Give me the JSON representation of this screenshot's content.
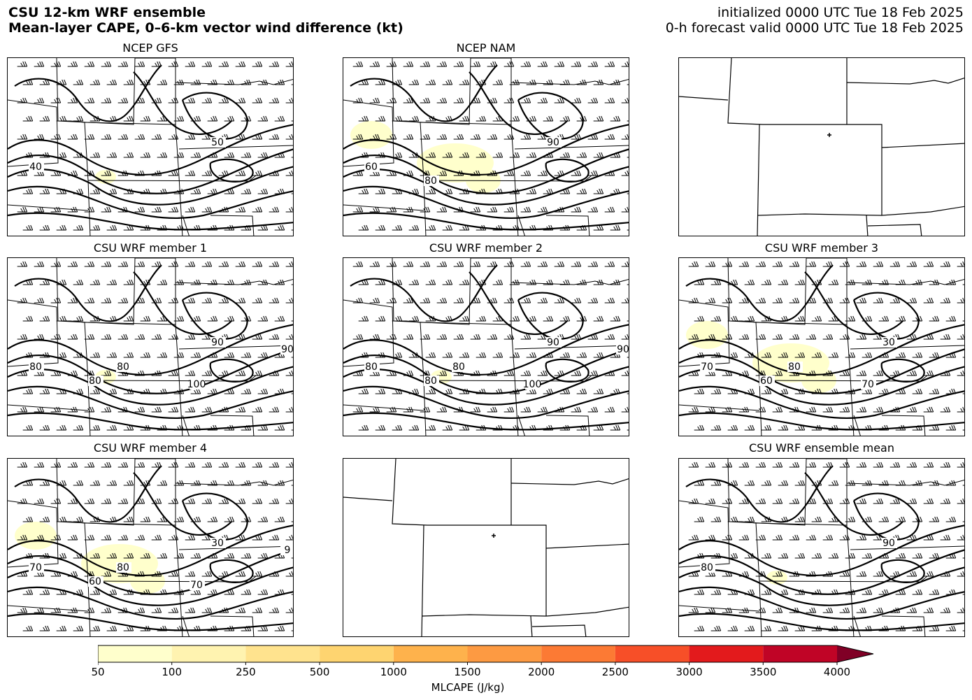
{
  "header": {
    "title_line1": "CSU 12-km WRF ensemble",
    "title_line2": "Mean-layer CAPE, 0–6-km vector wind difference (kt)",
    "init_line": "initialized 0000 UTC Tue 18 Feb 2025",
    "valid_line": "0-h forecast valid 0000 UTC Tue 18 Feb 2025"
  },
  "panels": [
    {
      "title": "NCEP GFS",
      "has_data": true,
      "cape_level": "low",
      "contour_labels": [
        "50",
        "40"
      ]
    },
    {
      "title": "NCEP NAM",
      "has_data": true,
      "cape_level": "medium",
      "contour_labels": [
        "90",
        "60",
        "80"
      ]
    },
    {
      "title": "",
      "has_data": false
    },
    {
      "title": "CSU WRF member 1",
      "has_data": true,
      "cape_level": "low",
      "contour_labels": [
        "90",
        "80",
        "80",
        "80",
        "100",
        "90"
      ]
    },
    {
      "title": "CSU WRF member 2",
      "has_data": true,
      "cape_level": "low",
      "contour_labels": [
        "90",
        "80",
        "80",
        "80",
        "100",
        "90"
      ]
    },
    {
      "title": "CSU WRF member 3",
      "has_data": true,
      "cape_level": "medium",
      "contour_labels": [
        "30",
        "70",
        "60",
        "80",
        "70"
      ]
    },
    {
      "title": "CSU WRF member 4",
      "has_data": true,
      "cape_level": "medium",
      "contour_labels": [
        "30",
        "70",
        "60",
        "80",
        "70",
        "9"
      ]
    },
    {
      "title": "",
      "has_data": false
    },
    {
      "title": "CSU WRF ensemble mean",
      "has_data": true,
      "cape_level": "low",
      "contour_labels": [
        "90",
        "80"
      ]
    }
  ],
  "colorbar": {
    "label": "MLCAPE (J/kg)",
    "ticks": [
      "50",
      "100",
      "250",
      "500",
      "1000",
      "1500",
      "2000",
      "2500",
      "3000",
      "3500",
      "4000"
    ],
    "colors": [
      "#ffffcc",
      "#fff3b0",
      "#ffe38e",
      "#fed470",
      "#feb24c",
      "#fd9a42",
      "#fc7a34",
      "#f74f28",
      "#e31a1c",
      "#c00426",
      "#800026"
    ],
    "extend": "max"
  }
}
